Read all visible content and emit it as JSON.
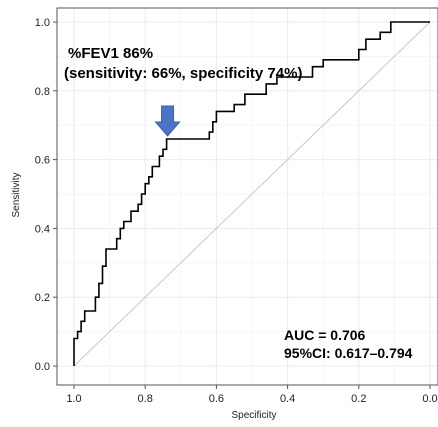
{
  "chart_data": {
    "type": "line",
    "title": "",
    "xlabel": "Specificity",
    "ylabel": "Sensitivity",
    "xlim": [
      1.0,
      0.0
    ],
    "ylim": [
      0.0,
      1.0
    ],
    "x_ticks": [
      "1.0",
      "0.8",
      "0.6",
      "0.4",
      "0.2",
      "0.0"
    ],
    "y_ticks": [
      "0.0",
      "0.2",
      "0.4",
      "0.6",
      "0.8",
      "1.0"
    ],
    "grid": true,
    "legend": "none",
    "reference_line": {
      "from": [
        1.0,
        0.0
      ],
      "to": [
        0.0,
        1.0
      ],
      "color": "#c8c8c8"
    },
    "series": [
      {
        "color": "#000000",
        "points": [
          [
            1.0,
            0.0
          ],
          [
            1.0,
            0.08
          ],
          [
            0.99,
            0.08
          ],
          [
            0.99,
            0.1
          ],
          [
            0.98,
            0.1
          ],
          [
            0.98,
            0.13
          ],
          [
            0.97,
            0.13
          ],
          [
            0.97,
            0.16
          ],
          [
            0.94,
            0.16
          ],
          [
            0.94,
            0.2
          ],
          [
            0.93,
            0.2
          ],
          [
            0.93,
            0.24
          ],
          [
            0.92,
            0.24
          ],
          [
            0.92,
            0.29
          ],
          [
            0.91,
            0.29
          ],
          [
            0.91,
            0.34
          ],
          [
            0.88,
            0.34
          ],
          [
            0.88,
            0.37
          ],
          [
            0.87,
            0.37
          ],
          [
            0.87,
            0.4
          ],
          [
            0.86,
            0.4
          ],
          [
            0.86,
            0.42
          ],
          [
            0.84,
            0.42
          ],
          [
            0.84,
            0.45
          ],
          [
            0.82,
            0.45
          ],
          [
            0.82,
            0.47
          ],
          [
            0.81,
            0.47
          ],
          [
            0.81,
            0.5
          ],
          [
            0.8,
            0.5
          ],
          [
            0.8,
            0.53
          ],
          [
            0.79,
            0.53
          ],
          [
            0.79,
            0.55
          ],
          [
            0.78,
            0.55
          ],
          [
            0.78,
            0.58
          ],
          [
            0.76,
            0.58
          ],
          [
            0.76,
            0.61
          ],
          [
            0.75,
            0.61
          ],
          [
            0.75,
            0.63
          ],
          [
            0.74,
            0.63
          ],
          [
            0.74,
            0.66
          ],
          [
            0.62,
            0.66
          ],
          [
            0.62,
            0.68
          ],
          [
            0.61,
            0.68
          ],
          [
            0.61,
            0.71
          ],
          [
            0.6,
            0.71
          ],
          [
            0.6,
            0.74
          ],
          [
            0.55,
            0.74
          ],
          [
            0.55,
            0.76
          ],
          [
            0.52,
            0.76
          ],
          [
            0.52,
            0.79
          ],
          [
            0.46,
            0.79
          ],
          [
            0.46,
            0.82
          ],
          [
            0.43,
            0.82
          ],
          [
            0.43,
            0.84
          ],
          [
            0.33,
            0.84
          ],
          [
            0.33,
            0.87
          ],
          [
            0.3,
            0.87
          ],
          [
            0.3,
            0.89
          ],
          [
            0.2,
            0.89
          ],
          [
            0.2,
            0.92
          ],
          [
            0.18,
            0.92
          ],
          [
            0.18,
            0.95
          ],
          [
            0.14,
            0.95
          ],
          [
            0.14,
            0.97
          ],
          [
            0.11,
            0.97
          ],
          [
            0.11,
            1.0
          ],
          [
            0.0,
            1.0
          ]
        ]
      }
    ],
    "annotations": {
      "cutoff_line1": "%FEV1  86%",
      "cutoff_line2": "(sensitivity: 66%, specificity 74%)",
      "auc": "AUC = 0.706",
      "ci": "95%CI: 0.617–0.794"
    },
    "marker": {
      "x": 0.74,
      "y": 0.66,
      "color": "#4a74c5",
      "type": "arrow-down"
    }
  }
}
